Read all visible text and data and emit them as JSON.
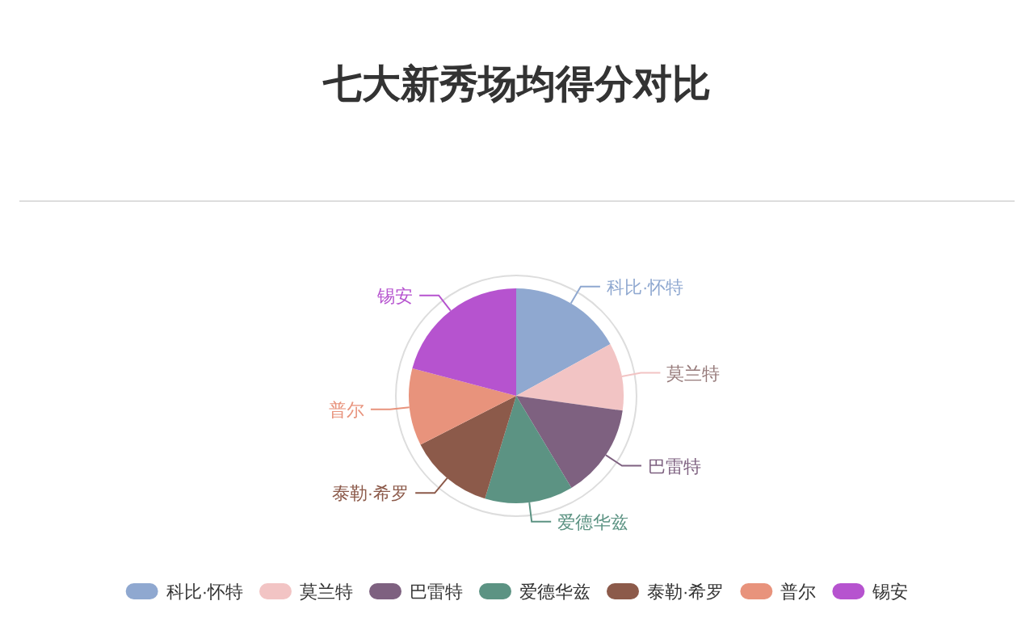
{
  "chart_data": {
    "type": "pie",
    "title": "七大新秀场均得分对比",
    "categories": [
      "科比·怀特",
      "莫兰特",
      "巴雷特",
      "爱德华兹",
      "泰勒·希罗",
      "普尔",
      "锡安"
    ],
    "values": [
      17.0,
      10.2,
      14.2,
      13.3,
      12.8,
      11.6,
      20.9
    ],
    "colors": [
      "#8fa8d0",
      "#f2c4c4",
      "#7e6180",
      "#5c9383",
      "#8c5a4a",
      "#e8937c",
      "#b653cf"
    ],
    "legend": "bottom"
  }
}
